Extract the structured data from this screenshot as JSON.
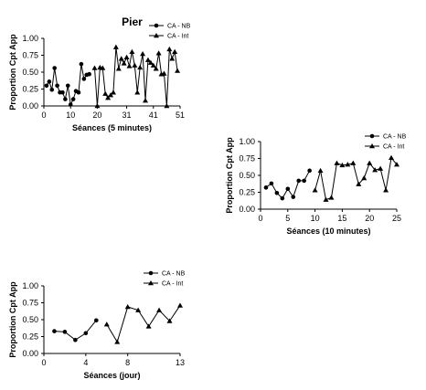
{
  "chart_data": [
    {
      "type": "line",
      "title": "Pier",
      "xlabel": "Séances (5 minutes)",
      "ylabel": "Proportion Cpt App",
      "xlim": [
        0,
        51
      ],
      "ylim": [
        0,
        1
      ],
      "x_ticks": [
        "0",
        "10",
        "20",
        "31",
        "41",
        "51"
      ],
      "x_tick_values": [
        0,
        10,
        20,
        31,
        41,
        51
      ],
      "y_ticks": [
        "0.00",
        "0.25",
        "0.50",
        "0.75",
        "1.00"
      ],
      "y_tick_values": [
        0,
        0.25,
        0.5,
        0.75,
        1.0
      ],
      "legend": [
        "CA - NB",
        "CA - Int"
      ],
      "legend_position": "top-right",
      "series": [
        {
          "name": "CA - NB",
          "marker": "circle",
          "points": [
            [
              1,
              0.3
            ],
            [
              2,
              0.36
            ],
            [
              3,
              0.24
            ],
            [
              4,
              0.56
            ],
            [
              5,
              0.3
            ],
            [
              6,
              0.2
            ],
            [
              7,
              0.2
            ],
            [
              8,
              0.1
            ],
            [
              9,
              0.3
            ],
            [
              10,
              0.02
            ],
            [
              11,
              0.1
            ],
            [
              12,
              0.22
            ],
            [
              13,
              0.2
            ],
            [
              14,
              0.62
            ],
            [
              15,
              0.4
            ],
            [
              16,
              0.46
            ],
            [
              17,
              0.47
            ]
          ]
        },
        {
          "name": "CA - Int",
          "marker": "triangle",
          "points": [
            [
              19,
              0.56
            ],
            [
              20,
              0.0
            ],
            [
              21,
              0.57
            ],
            [
              22,
              0.56
            ],
            [
              23,
              0.18
            ],
            [
              24,
              0.12
            ],
            [
              25,
              0.16
            ],
            [
              26,
              0.2
            ],
            [
              27,
              0.87
            ],
            [
              28,
              0.55
            ],
            [
              29,
              0.7
            ],
            [
              30,
              0.63
            ],
            [
              31,
              0.72
            ],
            [
              32,
              0.59
            ],
            [
              33,
              0.8
            ],
            [
              34,
              0.6
            ],
            [
              35,
              0.2
            ],
            [
              36,
              0.57
            ],
            [
              37,
              0.77
            ],
            [
              38,
              0.08
            ],
            [
              39,
              0.68
            ],
            [
              40,
              0.64
            ],
            [
              41,
              0.6
            ],
            [
              42,
              0.55
            ],
            [
              43,
              0.78
            ],
            [
              44,
              0.47
            ],
            [
              45,
              0.48
            ],
            [
              46,
              0.0
            ],
            [
              47,
              0.84
            ],
            [
              48,
              0.7
            ],
            [
              49,
              0.8
            ],
            [
              50,
              0.52
            ]
          ]
        }
      ]
    },
    {
      "type": "line",
      "title": "",
      "xlabel": "Séances (10 minutes)",
      "ylabel": "Proportion Cpt App",
      "xlim": [
        0,
        25
      ],
      "ylim": [
        0,
        1
      ],
      "x_ticks": [
        "0",
        "5",
        "10",
        "15",
        "20",
        "25"
      ],
      "x_tick_values": [
        0,
        5,
        10,
        15,
        20,
        25
      ],
      "y_ticks": [
        "0.00",
        "0.25",
        "0.50",
        "0.75",
        "1.00"
      ],
      "y_tick_values": [
        0,
        0.25,
        0.5,
        0.75,
        1.0
      ],
      "legend": [
        "CA - NB",
        "CA - Int"
      ],
      "legend_position": "top-right",
      "series": [
        {
          "name": "CA - NB",
          "marker": "circle",
          "points": [
            [
              1,
              0.32
            ],
            [
              2,
              0.38
            ],
            [
              3,
              0.24
            ],
            [
              4,
              0.16
            ],
            [
              5,
              0.3
            ],
            [
              6,
              0.18
            ],
            [
              7,
              0.42
            ],
            [
              8,
              0.42
            ],
            [
              9,
              0.57
            ]
          ]
        },
        {
          "name": "CA - Int",
          "marker": "triangle",
          "points": [
            [
              10,
              0.28
            ],
            [
              11,
              0.57
            ],
            [
              12,
              0.14
            ],
            [
              13,
              0.17
            ],
            [
              14,
              0.68
            ],
            [
              15,
              0.65
            ],
            [
              16,
              0.66
            ],
            [
              17,
              0.68
            ],
            [
              18,
              0.37
            ],
            [
              19,
              0.46
            ],
            [
              20,
              0.68
            ],
            [
              21,
              0.58
            ],
            [
              22,
              0.6
            ],
            [
              23,
              0.28
            ],
            [
              24,
              0.76
            ],
            [
              25,
              0.66
            ]
          ]
        }
      ]
    },
    {
      "type": "line",
      "title": "",
      "xlabel": "Séances (jour)",
      "ylabel": "Proportion Cpt App",
      "xlim": [
        0,
        13
      ],
      "ylim": [
        0,
        1
      ],
      "x_ticks": [
        "0",
        "4",
        "8",
        "13"
      ],
      "x_tick_values": [
        0,
        4,
        8,
        13
      ],
      "y_ticks": [
        "0.00",
        "0.25",
        "0.50",
        "0.75",
        "1.00"
      ],
      "y_tick_values": [
        0,
        0.25,
        0.5,
        0.75,
        1.0
      ],
      "legend": [
        "CA - NB",
        "CA - Int"
      ],
      "legend_position": "top-right",
      "series": [
        {
          "name": "CA - NB",
          "marker": "circle",
          "points": [
            [
              1,
              0.33
            ],
            [
              2,
              0.32
            ],
            [
              3,
              0.2
            ],
            [
              4,
              0.3
            ],
            [
              5,
              0.49
            ]
          ]
        },
        {
          "name": "CA - Int",
          "marker": "triangle",
          "points": [
            [
              6,
              0.43
            ],
            [
              7,
              0.17
            ],
            [
              8,
              0.69
            ],
            [
              9,
              0.64
            ],
            [
              10,
              0.4
            ],
            [
              11,
              0.64
            ],
            [
              12,
              0.48
            ],
            [
              13,
              0.71
            ]
          ]
        }
      ]
    }
  ]
}
